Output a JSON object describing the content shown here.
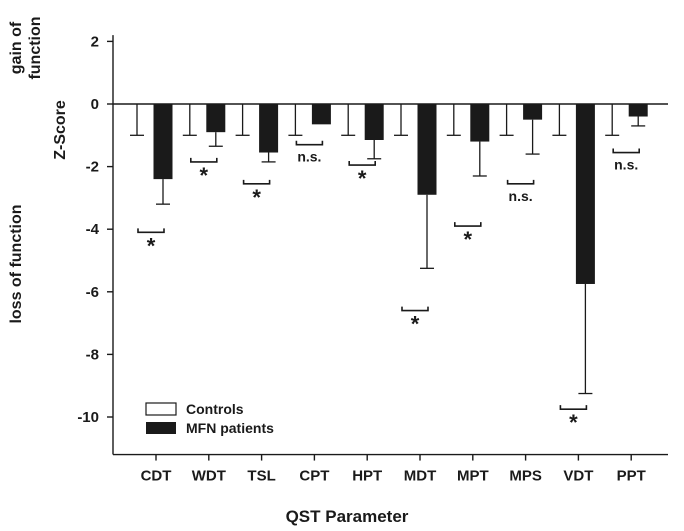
{
  "chart_data": {
    "type": "bar",
    "title": "",
    "xlabel": "QST Parameter",
    "ylabel": "Z-Score",
    "ylabel_top": "gain of function",
    "ylabel_top_lines": [
      "gain of",
      "function"
    ],
    "ylabel_bottom": "loss of function",
    "ylim": [
      -11.2,
      2.2
    ],
    "yticks": [
      2,
      0,
      -2,
      -4,
      -6,
      -8,
      -10
    ],
    "ytick_labels": [
      "2",
      "0",
      "-2",
      "-4",
      "-6",
      "-8",
      "-10"
    ],
    "categories": [
      "CDT",
      "WDT",
      "TSL",
      "CPT",
      "HPT",
      "MDT",
      "MPT",
      "MPS",
      "VDT",
      "PPT"
    ],
    "series": [
      {
        "name": "Controls",
        "color": "#ffffff",
        "values": [
          0,
          0,
          0,
          0,
          0,
          0,
          0,
          0,
          0,
          0
        ],
        "error_low": [
          -1,
          -1,
          -1,
          -1,
          -1,
          -1,
          -1,
          -1,
          -1,
          -1
        ]
      },
      {
        "name": "MFN patients",
        "color": "#1a1a1a",
        "values": [
          -2.4,
          -0.9,
          -1.55,
          -0.65,
          -1.15,
          -2.9,
          -1.2,
          -0.5,
          -5.75,
          -0.4
        ],
        "error_low": [
          -3.2,
          -1.35,
          -1.85,
          -0.65,
          -1.75,
          -5.25,
          -2.3,
          -1.6,
          -9.25,
          -0.7
        ]
      }
    ],
    "significance": [
      {
        "label": "*",
        "bracket_y": -4.1
      },
      {
        "label": "*",
        "bracket_y": -1.85
      },
      {
        "label": "*",
        "bracket_y": -2.55
      },
      {
        "label": "n.s.",
        "bracket_y": -1.3
      },
      {
        "label": "*",
        "bracket_y": -1.95
      },
      {
        "label": "*",
        "bracket_y": -6.6
      },
      {
        "label": "*",
        "bracket_y": -3.9
      },
      {
        "label": "n.s.",
        "bracket_y": -2.55
      },
      {
        "label": "*",
        "bracket_y": -9.75
      },
      {
        "label": "n.s.",
        "bracket_y": -1.55
      }
    ],
    "legend": {
      "position": "bottom-left",
      "entries": [
        "Controls",
        "MFN patients"
      ]
    },
    "grid": false
  }
}
